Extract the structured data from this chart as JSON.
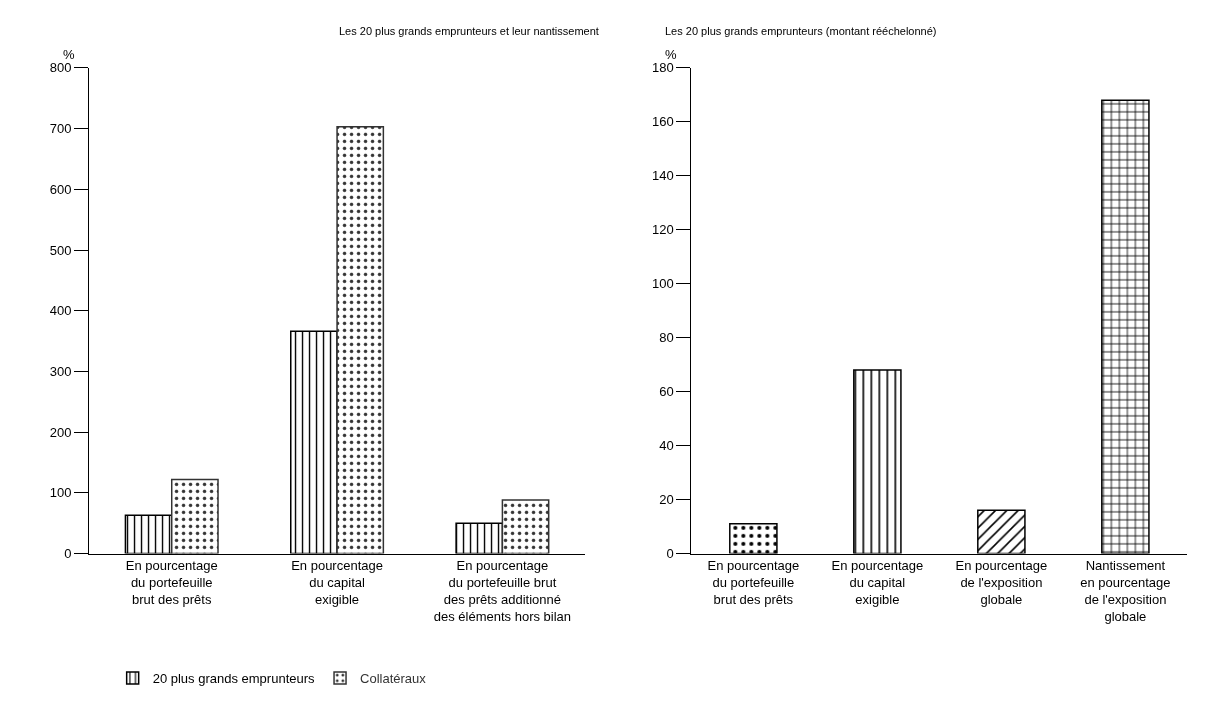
{
  "chart_data": [
    {
      "type": "bar",
      "title": "Les 20 plus grands emprunteurs et leur nantissement",
      "ylabel": "%",
      "categories": [
        "En pourcentage\ndu portefeuille\nbrut des prêts",
        "En pourcentage\ndu capital\nexigible",
        "En pourcentage\ndu portefeuille brut\ndes prêts additionné\ndes éléments hors bilan"
      ],
      "series": [
        {
          "name": "20 plus grands emprunteurs",
          "color": "#000000",
          "values": [
            63,
            366,
            50
          ]
        },
        {
          "name": "Collatéraux",
          "color": "#333333",
          "values": [
            122,
            703,
            88
          ]
        }
      ],
      "ylim": [
        0,
        800
      ],
      "yticks": [
        0,
        100,
        200,
        300,
        400,
        500,
        600,
        700,
        800
      ],
      "grid": false,
      "legend": "bottom left"
    },
    {
      "type": "bar",
      "title": "Les 20 plus grands emprunteurs (montant rééchelonné)",
      "ylabel": "%",
      "categories": [
        "En pourcentage\ndu portefeuille\nbrut des prêts",
        "En pourcentage\ndu capital\nexigible",
        "En pourcentage\nde l'exposition\nglobale",
        "Nantissement\nen pourcentage\nde l'exposition\nglobale"
      ],
      "values": [
        11,
        68,
        16,
        168
      ],
      "color": "#000000",
      "ylim": [
        0,
        180
      ],
      "yticks": [
        0,
        20,
        40,
        60,
        80,
        100,
        120,
        140,
        160,
        180
      ],
      "grid": false
    }
  ]
}
